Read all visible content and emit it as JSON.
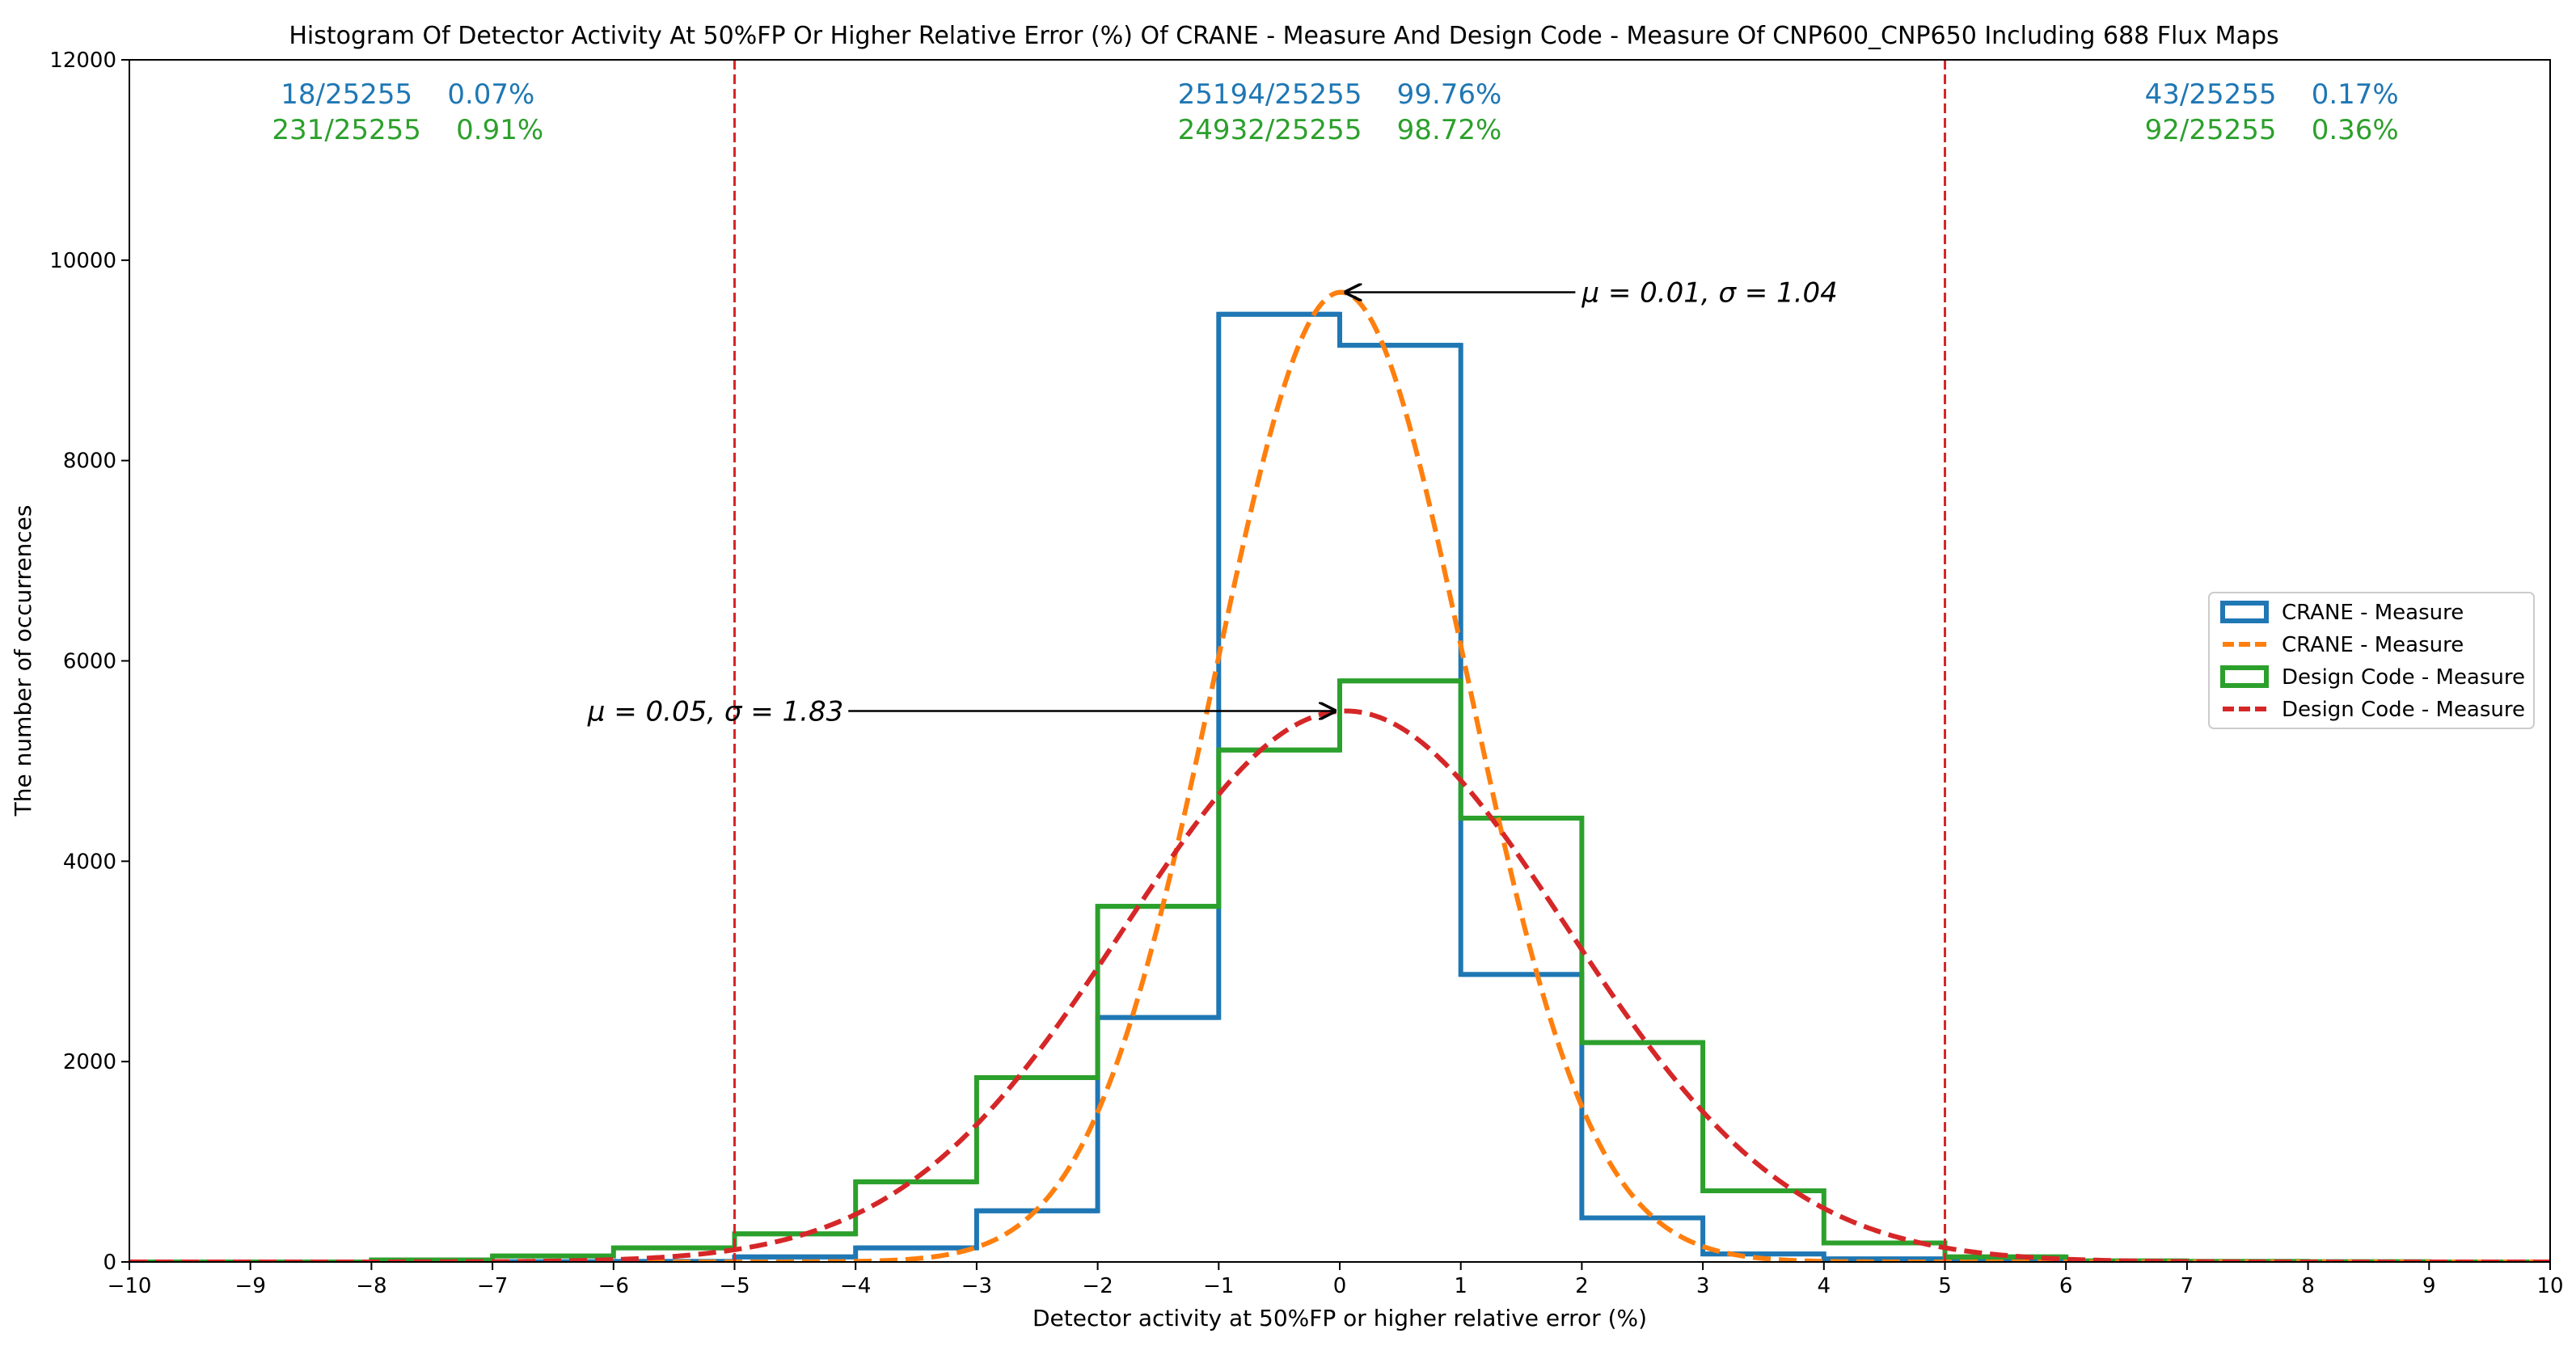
{
  "chart_data": {
    "type": "bar",
    "title": "Histogram Of Detector Activity At 50%FP Or Higher Relative Error (%) Of CRANE - Measure And Design Code - Measure Of CNP600_CNP650 Including 688 Flux Maps",
    "xlabel": "Detector activity at 50%FP or higher relative error (%)",
    "ylabel": "The number of occurrences",
    "xlim": [
      -10,
      10
    ],
    "ylim": [
      0,
      12000
    ],
    "xticks": [
      "−10",
      "−9",
      "−8",
      "−7",
      "−6",
      "−5",
      "−4",
      "−3",
      "−2",
      "−1",
      "0",
      "1",
      "2",
      "3",
      "4",
      "5",
      "6",
      "7",
      "8",
      "9",
      "10"
    ],
    "yticks": [
      "0",
      "2000",
      "4000",
      "6000",
      "8000",
      "10000",
      "12000"
    ],
    "grid": false,
    "legend_position": "center-right",
    "bin_edges": [
      -10,
      -9,
      -8,
      -7,
      -6,
      -5,
      -4,
      -3,
      -2,
      -1,
      0,
      1,
      2,
      3,
      4,
      5,
      6,
      7,
      8,
      9,
      10
    ],
    "series": [
      {
        "name": "CRANE - Measure",
        "kind": "step-histogram",
        "color": "#1f77b4",
        "values": [
          0,
          0,
          0,
          2,
          5,
          50,
          140,
          510,
          2440,
          9460,
          9150,
          2870,
          440,
          80,
          30,
          10,
          3,
          0,
          0,
          0
        ]
      },
      {
        "name": "CRANE - Measure",
        "kind": "gaussian-fit",
        "color": "#ff7f0e",
        "mu": 0.01,
        "sigma": 1.04,
        "peak": 9680
      },
      {
        "name": "Design Code - Measure",
        "kind": "step-histogram",
        "color": "#2ca02c",
        "values": [
          0,
          0,
          20,
          60,
          140,
          280,
          800,
          1840,
          3550,
          5110,
          5800,
          4430,
          2190,
          710,
          190,
          50,
          10,
          5,
          2,
          0
        ]
      },
      {
        "name": "Design Code - Measure",
        "kind": "gaussian-fit",
        "color": "#d62728",
        "mu": 0.05,
        "sigma": 1.83,
        "peak": 5500
      }
    ],
    "vlines": [
      {
        "x": -5,
        "color": "#d62728",
        "style": "dashed"
      },
      {
        "x": 5,
        "color": "#d62728",
        "style": "dashed"
      }
    ],
    "annotations": [
      {
        "text": "μ = 0.01, σ = 1.04",
        "point": [
          0.01,
          9680
        ],
        "text_at": [
          2,
          9680
        ]
      },
      {
        "text": "μ = 0.05, σ = 1.83",
        "point": [
          0,
          5500
        ],
        "text_at": [
          -4.1,
          5500
        ]
      }
    ],
    "region_labels": [
      {
        "line1": "18/25255    0.07%",
        "line2": "231/25255    0.91%",
        "x": -7.7
      },
      {
        "line1": "25194/25255    99.76%",
        "line2": "24932/25255    98.72%",
        "x": 0
      },
      {
        "line1": "43/25255    0.17%",
        "line2": "92/25255    0.36%",
        "x": 7.7
      }
    ]
  }
}
